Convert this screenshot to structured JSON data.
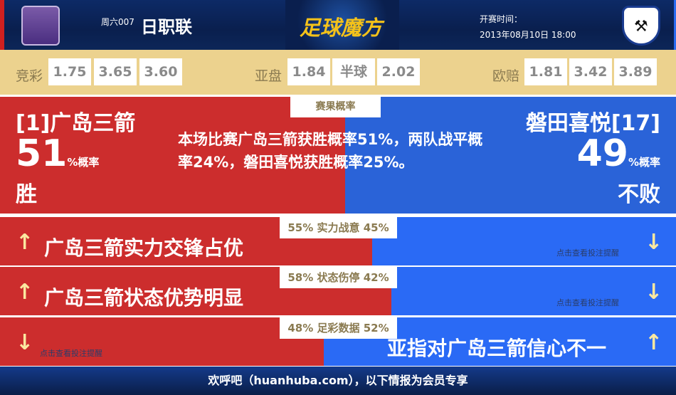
{
  "header": {
    "round": "周六007",
    "league": "日职联",
    "brand": "足球魔方",
    "kickoff_label": "开赛时间：",
    "kickoff_time": "2013年08月10日 18:00",
    "home_logo": "sanfrecce-crest",
    "away_logo": "jubilo-crest"
  },
  "odds": {
    "jingcai": {
      "label": "竞彩",
      "values": [
        "1.75",
        "3.65",
        "3.60"
      ]
    },
    "yapan": {
      "label": "亚盘",
      "values": [
        "1.84",
        "半球",
        "2.02"
      ]
    },
    "ouzhi": {
      "label": "欧赔",
      "values": [
        "1.81",
        "3.42",
        "3.89"
      ]
    }
  },
  "result": {
    "tag": "赛果概率",
    "home_name": "[1]广岛三箭",
    "home_pct": "51",
    "home_pct_unit": "%概率",
    "home_outcome": "胜",
    "description": "本场比赛广岛三箭获胜概率51%，两队战平概率24%，磐田喜悦获胜概率25%。",
    "away_name": "磐田喜悦[17]",
    "away_pct": "49",
    "away_pct_unit": "%概率",
    "away_outcome": "不败"
  },
  "rows": [
    {
      "tag": "55% 实力战意 45%",
      "home_share": 55,
      "text": "广岛三箭实力交锋占优",
      "hint": "点击查看投注提醒"
    },
    {
      "tag": "58% 状态伤停 42%",
      "home_share": 58,
      "text": "广岛三箭状态优势明显",
      "hint": "点击查看投注提醒"
    },
    {
      "tag": "48% 足彩数据 52%",
      "home_share": 48,
      "text": "亚指对广岛三箭信心不一",
      "hint": "点击查看投注提醒"
    }
  ],
  "colors": {
    "home": "#cc2d2d",
    "away": "#2a6af5",
    "odds_bg": "#ecd28e",
    "header": "#0a1f4e"
  },
  "footer": {
    "text": "欢呼吧（huanhuba.com），以下情报为会员专享"
  }
}
